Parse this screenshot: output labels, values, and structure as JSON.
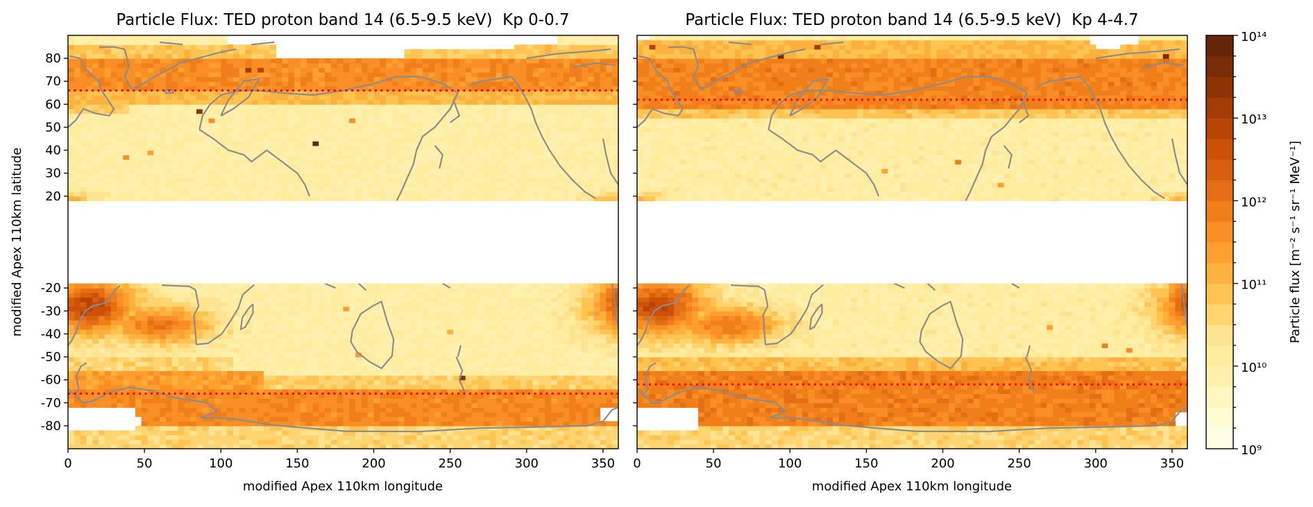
{
  "chart_data": [
    {
      "type": "heatmap",
      "title": "Particle Flux: TED proton band 14 (6.5-9.5 keV)  Kp 0-0.7",
      "xlabel": "modified Apex 110km longitude",
      "ylabel": "modified Apex 110km latitude",
      "xlim": [
        0,
        360
      ],
      "ylim": [
        -90,
        90
      ],
      "xticks": [
        0,
        50,
        100,
        150,
        200,
        250,
        300,
        350
      ],
      "xtick_labels": [
        "0",
        "50",
        "100",
        "150",
        "200",
        "250",
        "300",
        "350"
      ],
      "yticks": [
        80,
        70,
        60,
        50,
        40,
        30,
        20,
        -20,
        -30,
        -40,
        -50,
        -60,
        -70,
        -80
      ],
      "ytick_labels": [
        "80",
        "70",
        "60",
        "50",
        "40",
        "30",
        "20",
        "-20",
        "-30",
        "-40",
        "-50",
        "-60",
        "-70",
        "-80"
      ],
      "show_ytick_labels": true,
      "value_units": "log10 particle flux",
      "grid": {
        "lon_step": 4,
        "lat_step": 2
      },
      "no_data_latitudes": [
        -18,
        18
      ],
      "cutoff_latitude": 66,
      "background_log10_flux": 10.0,
      "bands": [
        {
          "lat": [
            66,
            80
          ],
          "lon": [
            0,
            360
          ],
          "value": 11.65
        },
        {
          "lat": [
            60,
            66
          ],
          "lon": [
            0,
            360
          ],
          "value": 11.0
        },
        {
          "lat": [
            80,
            86
          ],
          "lon": [
            0,
            360
          ],
          "value": 10.8
        },
        {
          "lat": [
            56,
            60
          ],
          "lon": [
            0,
            40
          ],
          "value": 10.8
        },
        {
          "lat": [
            -80,
            -64
          ],
          "lon": [
            0,
            360
          ],
          "value": 11.7
        },
        {
          "lat": [
            -64,
            -56
          ],
          "lon": [
            0,
            130
          ],
          "value": 11.4
        },
        {
          "lat": [
            -64,
            -58
          ],
          "lon": [
            130,
            360
          ],
          "value": 10.7
        },
        {
          "lat": [
            -90,
            -80
          ],
          "lon": [
            0,
            360
          ],
          "value": 10.6
        },
        {
          "lat": [
            -56,
            -50
          ],
          "lon": [
            0,
            110
          ],
          "value": 10.6
        }
      ],
      "anomalies": [
        {
          "name": "South Atlantic Anomaly",
          "lon": 14,
          "lat": -28,
          "sigma_lon": 22,
          "sigma_lat": 9,
          "peak": 12.75
        },
        {
          "name": "SAA extension",
          "lon": 60,
          "lat": -36,
          "sigma_lon": 24,
          "sigma_lat": 6,
          "peak": 12.0
        },
        {
          "name": "SAA wrap",
          "lon": 358,
          "lat": -26,
          "sigma_lon": 9,
          "sigma_lat": 8,
          "peak": 12.3
        },
        {
          "name": "low-latitude edge",
          "lon": 0,
          "lat": 19,
          "sigma_lon": 14,
          "sigma_lat": 2,
          "peak": 11.0
        }
      ],
      "missing_regions": [
        {
          "lon": [
            136,
            220
          ],
          "lat": [
            80,
            90
          ]
        },
        {
          "lon": [
            220,
            292
          ],
          "lat": [
            84,
            90
          ]
        },
        {
          "lon": [
            104,
            136
          ],
          "lat": [
            86,
            90
          ]
        },
        {
          "lon": [
            292,
            320
          ],
          "lat": [
            86,
            90
          ]
        },
        {
          "lon": [
            0,
            44
          ],
          "lat": [
            -82,
            -72
          ]
        },
        {
          "lon": [
            44,
            48
          ],
          "lat": [
            -80,
            -76
          ]
        },
        {
          "lon": [
            350,
            360
          ],
          "lat": [
            -78,
            -72
          ]
        }
      ],
      "hot_pixels": [
        [
          84,
          57,
          13.4
        ],
        [
          118,
          75,
          13.0
        ],
        [
          124,
          75,
          12.9
        ],
        [
          163,
          43,
          13.8
        ],
        [
          256,
          -59,
          13.3
        ],
        [
          36,
          36,
          11.6
        ],
        [
          92,
          52,
          11.5
        ],
        [
          184,
          53,
          11.6
        ],
        [
          52,
          38,
          11.4
        ],
        [
          182,
          -30,
          11.4
        ],
        [
          250,
          -40,
          11.2
        ],
        [
          188,
          -50,
          11.3
        ]
      ]
    },
    {
      "type": "heatmap",
      "title": "Particle Flux: TED proton band 14 (6.5-9.5 keV)  Kp 4-4.7",
      "xlabel": "modified Apex 110km longitude",
      "ylabel": "",
      "xlim": [
        0,
        360
      ],
      "ylim": [
        -90,
        90
      ],
      "xticks": [
        0,
        50,
        100,
        150,
        200,
        250,
        300,
        350
      ],
      "xtick_labels": [
        "0",
        "50",
        "100",
        "150",
        "200",
        "250",
        "300",
        "350"
      ],
      "yticks": [
        80,
        70,
        60,
        50,
        40,
        30,
        20,
        -20,
        -30,
        -40,
        -50,
        -60,
        -70,
        -80
      ],
      "ytick_labels": [],
      "show_ytick_labels": false,
      "value_units": "log10 particle flux",
      "grid": {
        "lon_step": 4,
        "lat_step": 2
      },
      "no_data_latitudes": [
        -18,
        18
      ],
      "cutoff_latitude": 62,
      "background_log10_flux": 10.05,
      "bands": [
        {
          "lat": [
            58,
            80
          ],
          "lon": [
            0,
            360
          ],
          "value": 11.8
        },
        {
          "lat": [
            54,
            58
          ],
          "lon": [
            0,
            360
          ],
          "value": 10.8
        },
        {
          "lat": [
            80,
            88
          ],
          "lon": [
            0,
            360
          ],
          "value": 11.0
        },
        {
          "lat": [
            -80,
            -56
          ],
          "lon": [
            0,
            360
          ],
          "value": 11.85
        },
        {
          "lat": [
            -56,
            -50
          ],
          "lon": [
            0,
            360
          ],
          "value": 10.9
        },
        {
          "lat": [
            -90,
            -80
          ],
          "lon": [
            0,
            360
          ],
          "value": 10.6
        }
      ],
      "anomalies": [
        {
          "name": "South Atlantic Anomaly",
          "lon": 14,
          "lat": -28,
          "sigma_lon": 22,
          "sigma_lat": 9,
          "peak": 12.75
        },
        {
          "name": "SAA extension",
          "lon": 60,
          "lat": -36,
          "sigma_lon": 24,
          "sigma_lat": 6,
          "peak": 12.0
        },
        {
          "name": "SAA wrap",
          "lon": 358,
          "lat": -26,
          "sigma_lon": 9,
          "sigma_lat": 8,
          "peak": 12.4
        },
        {
          "name": "low-latitude edge",
          "lon": 0,
          "lat": 19,
          "sigma_lon": 14,
          "sigma_lat": 2,
          "peak": 11.0
        }
      ],
      "missing_regions": [
        {
          "lon": [
            0,
            40
          ],
          "lat": [
            -82,
            -72
          ]
        },
        {
          "lon": [
            354,
            360
          ],
          "lat": [
            -80,
            -74
          ]
        },
        {
          "lon": [
            296,
            330
          ],
          "lat": [
            86,
            90
          ]
        },
        {
          "lon": [
            300,
            316
          ],
          "lat": [
            84,
            86
          ]
        },
        {
          "lon": [
            0,
            8
          ],
          "lat": [
            88,
            90
          ]
        }
      ],
      "hot_pixels": [
        [
          8,
          84,
          12.9
        ],
        [
          92,
          81,
          13.5
        ],
        [
          118,
          84,
          13.1
        ],
        [
          345,
          81,
          13.6
        ],
        [
          210,
          35,
          11.8
        ],
        [
          306,
          -45,
          11.8
        ],
        [
          322,
          -48,
          11.6
        ],
        [
          160,
          30,
          11.3
        ],
        [
          236,
          25,
          11.4
        ],
        [
          270,
          -38,
          11.3
        ]
      ]
    }
  ],
  "colorbar": {
    "label": "Particle flux [m⁻² s⁻¹ sr⁻¹ MeV⁻¹]",
    "scale": "log",
    "range_log10": [
      9,
      14
    ],
    "levels_per_decade": 4,
    "ticks_log10": [
      9,
      10,
      11,
      12,
      13,
      14
    ],
    "tick_labels": [
      "10⁹",
      "10¹⁰",
      "10¹¹",
      "10¹²",
      "10¹³",
      "10¹⁴"
    ],
    "colors": [
      "#ffffe5",
      "#fffbd3",
      "#fff6c1",
      "#fff0ae",
      "#feec9f",
      "#fee391",
      "#fed470",
      "#fec44f",
      "#feb03d",
      "#fe9f2f",
      "#f98f24",
      "#f07f1a",
      "#e56e14",
      "#d85f0c",
      "#cc5006",
      "#b84404",
      "#a43b04",
      "#8f3305",
      "#7a2c06",
      "#662506"
    ]
  },
  "colors": {
    "cutoff_line": "#ff0000",
    "coastline": "#8c8c8c"
  }
}
